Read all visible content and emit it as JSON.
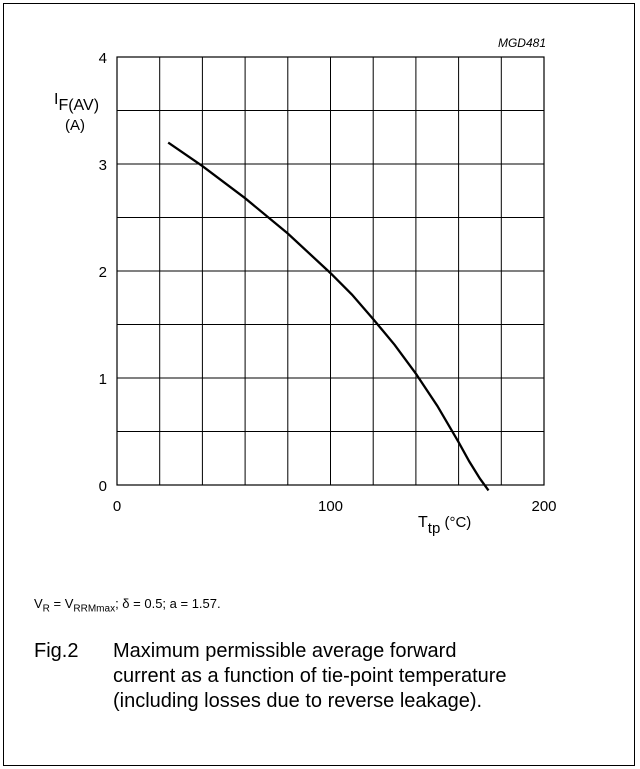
{
  "chart_data": {
    "type": "line",
    "code": "MGD481",
    "ylabel": {
      "main": "I",
      "sub": "F(AV)",
      "unit": "(A)"
    },
    "xlabel": {
      "main": "T",
      "sub": "tp",
      "unit": " (°C)"
    },
    "xlim": [
      0,
      200
    ],
    "ylim": [
      0,
      4
    ],
    "x_ticks": [
      0,
      100,
      200
    ],
    "y_ticks": [
      0,
      1,
      2,
      3,
      4
    ],
    "x_grid_step": 20,
    "y_grid_step": 0.5,
    "grid": true,
    "series": [
      {
        "x": [
          24,
          40,
          60,
          80,
          100,
          110,
          120,
          130,
          140,
          150,
          160,
          165,
          170,
          174
        ],
        "y": [
          3.2,
          2.98,
          2.68,
          2.35,
          1.98,
          1.78,
          1.55,
          1.31,
          1.04,
          0.74,
          0.4,
          0.22,
          0.06,
          -0.05
        ]
      }
    ]
  },
  "conditions": {
    "v": "V",
    "r": "R",
    "eq": " = V",
    "rrm": "RRMmax",
    "rest": "; δ = 0.5; a = 1.57."
  },
  "caption": {
    "number": "Fig.2",
    "lines": [
      "Maximum permissible average forward",
      "current as a function of tie-point temperature",
      "(including losses due to reverse leakage)."
    ]
  }
}
